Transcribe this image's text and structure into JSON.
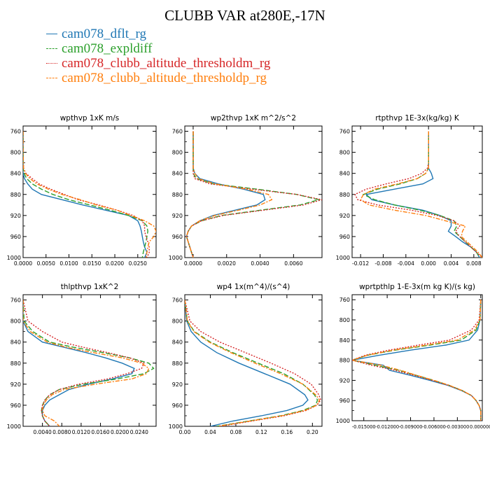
{
  "figure": {
    "title": "CLUBB VAR at280E,-17N",
    "legend": [
      {
        "label": "cam078_dflt_rg",
        "color": "#1f77b4",
        "dash": ""
      },
      {
        "label": "cam078_expldiff",
        "color": "#2ca02c",
        "dash": "7,3"
      },
      {
        "label": "cam078_clubb_altitude_thresholdm_rg",
        "color": "#d62728",
        "dash": "2,2"
      },
      {
        "label": "cam078_clubb_altitude_thresholdp_rg",
        "color": "#ff7f0e",
        "dash": "6,2,2,2"
      }
    ]
  },
  "chart_data": [
    {
      "type": "line",
      "title": "wpthvp  1xK m/s",
      "xlim": [
        0,
        0.029
      ],
      "ylim": [
        1000,
        750
      ],
      "xticks": [
        0,
        0.005,
        0.01,
        0.015,
        0.02,
        0.025
      ],
      "xticklabels": [
        "0.0000",
        "0.0050",
        "0.0100",
        "0.0150",
        "0.0200",
        "0.0250"
      ],
      "yticks": [
        760,
        800,
        840,
        880,
        920,
        960,
        1000
      ],
      "y": [
        760,
        800,
        830,
        840,
        850,
        860,
        870,
        880,
        890,
        900,
        910,
        920,
        930,
        940,
        950,
        960,
        970,
        980,
        990,
        1000
      ],
      "series": [
        {
          "name": "cam078_dflt_rg",
          "values": [
            0,
            0,
            0,
            0,
            0.0003,
            0.001,
            0.002,
            0.004,
            0.0085,
            0.013,
            0.018,
            0.023,
            0.025,
            0.0255,
            0.0258,
            0.026,
            0.0262,
            0.0265,
            0.027,
            0.0265
          ]
        },
        {
          "name": "cam078_expldiff",
          "values": [
            0,
            0,
            0,
            0.0002,
            0.0008,
            0.002,
            0.004,
            0.0065,
            0.01,
            0.0145,
            0.019,
            0.023,
            0.026,
            0.027,
            0.0272,
            0.027,
            0.0268,
            0.0265,
            0.0262,
            0.026
          ]
        },
        {
          "name": "cam078_clubb_altitude_thresholdm_rg",
          "values": [
            0,
            0,
            0.0001,
            0.0006,
            0.002,
            0.0035,
            0.006,
            0.009,
            0.012,
            0.0165,
            0.0205,
            0.024,
            0.026,
            0.0265,
            0.0265,
            0.0268,
            0.0272,
            0.0275,
            0.0275,
            0.027
          ]
        },
        {
          "name": "cam078_clubb_altitude_thresholdp_rg",
          "values": [
            0,
            0,
            0.0001,
            0.0005,
            0.0015,
            0.003,
            0.0055,
            0.0085,
            0.0125,
            0.016,
            0.0205,
            0.0235,
            0.0265,
            0.0285,
            0.029,
            0.0285,
            0.0275,
            0.0272,
            0.027,
            0.0268
          ]
        }
      ]
    },
    {
      "type": "line",
      "title": "wp2thvp  1xK m^2/s^2",
      "xlim": [
        -0.0005,
        0.0077
      ],
      "ylim": [
        1000,
        750
      ],
      "xticks": [
        0,
        0.002,
        0.004,
        0.006
      ],
      "xticklabels": [
        "0.0000",
        "0.0020",
        "0.0040",
        "0.0060"
      ],
      "yticks": [
        760,
        800,
        840,
        880,
        920,
        960,
        1000
      ],
      "y": [
        760,
        800,
        830,
        840,
        850,
        860,
        870,
        880,
        890,
        900,
        910,
        920,
        930,
        940,
        950,
        960,
        970,
        980,
        990,
        1000
      ],
      "series": [
        {
          "name": "cam078_dflt_rg",
          "values": [
            0,
            0,
            0,
            0.0001,
            0.0004,
            0.0015,
            0.003,
            0.0042,
            0.0043,
            0.0038,
            0.0025,
            0.0012,
            0.0004,
            -0.0001,
            -0.0003,
            -0.0004,
            -0.0003,
            -0.0002,
            -0.0001,
            0
          ]
        },
        {
          "name": "cam078_expldiff",
          "values": [
            0,
            0,
            0,
            0,
            0.0002,
            0.0012,
            0.0038,
            0.0062,
            0.0075,
            0.0064,
            0.004,
            0.0017,
            0.0005,
            -0.0001,
            -0.0003,
            -0.0004,
            -0.0003,
            -0.0002,
            -0.0001,
            0
          ]
        },
        {
          "name": "cam078_clubb_altitude_thresholdm_rg",
          "values": [
            0,
            0,
            0,
            0,
            0.0001,
            0.001,
            0.0035,
            0.0062,
            0.0077,
            0.0066,
            0.0042,
            0.0018,
            0.0005,
            -0.0001,
            -0.0003,
            -0.0004,
            -0.0003,
            -0.0002,
            -0.0001,
            0
          ]
        },
        {
          "name": "cam078_clubb_altitude_thresholdp_rg",
          "values": [
            0,
            0,
            0,
            0.0001,
            0.0003,
            0.0013,
            0.0032,
            0.0045,
            0.0047,
            0.004,
            0.0027,
            0.0013,
            0.0004,
            -0.0001,
            -0.0003,
            -0.0004,
            -0.0003,
            -0.0002,
            -0.0001,
            0
          ]
        }
      ]
    },
    {
      "type": "line",
      "title": "rtpthvp  1E-3x(kg/kg) K",
      "xlim": [
        -0.0135,
        0.0095
      ],
      "ylim": [
        1000,
        750
      ],
      "xticks": [
        -0.012,
        -0.008,
        -0.004,
        0,
        0.004,
        0.008
      ],
      "xticklabels": [
        "-0.012",
        "-0.008",
        "-0.004",
        "0.000",
        "0.004",
        "0.008"
      ],
      "yticks": [
        760,
        800,
        840,
        880,
        920,
        960,
        1000
      ],
      "y": [
        760,
        800,
        820,
        830,
        840,
        850,
        860,
        870,
        880,
        890,
        900,
        910,
        920,
        930,
        940,
        950,
        960,
        970,
        980,
        990,
        1000
      ],
      "series": [
        {
          "name": "cam078_dflt_rg",
          "values": [
            0,
            0,
            0,
            0,
            0.0005,
            0.0008,
            -0.001,
            -0.006,
            -0.011,
            -0.01,
            -0.006,
            -0.001,
            0.002,
            0.004,
            0.004,
            0.0035,
            0.0048,
            0.006,
            0.0075,
            0.0085,
            0.009
          ]
        },
        {
          "name": "cam078_expldiff",
          "values": [
            0,
            0,
            0,
            0,
            -0.0005,
            -0.002,
            -0.005,
            -0.009,
            -0.0115,
            -0.0095,
            -0.006,
            -0.0015,
            0.002,
            0.0045,
            0.005,
            0.0045,
            0.0055,
            0.0065,
            0.0075,
            0.0085,
            0.009
          ]
        },
        {
          "name": "cam078_clubb_altitude_thresholdm_rg",
          "values": [
            0,
            0,
            0,
            -0.0002,
            -0.0012,
            -0.0035,
            -0.0075,
            -0.011,
            -0.013,
            -0.0125,
            -0.009,
            -0.003,
            0.0015,
            0.0045,
            0.0055,
            0.0048,
            0.0055,
            0.0065,
            0.0075,
            0.0085,
            0.0095
          ]
        },
        {
          "name": "cam078_clubb_altitude_thresholdp_rg",
          "values": [
            0,
            0,
            0,
            0,
            -0.0005,
            -0.002,
            -0.0055,
            -0.0095,
            -0.0115,
            -0.012,
            -0.0105,
            -0.006,
            -0.0005,
            0.003,
            0.0065,
            0.006,
            0.0058,
            0.0068,
            0.0078,
            0.0088,
            0.0095
          ]
        }
      ]
    },
    {
      "type": "line",
      "title": "thlpthvp  1xK^2",
      "xlim": [
        0,
        0.0275
      ],
      "ylim": [
        1000,
        750
      ],
      "xticks": [
        0.004,
        0.008,
        0.012,
        0.016,
        0.02,
        0.024
      ],
      "xticklabels": [
        "0.0040",
        "0.0080",
        "0.0120",
        "0.0160",
        "0.0200",
        "0.0240"
      ],
      "yticks": [
        760,
        800,
        840,
        880,
        920,
        960,
        1000
      ],
      "y": [
        760,
        800,
        820,
        840,
        850,
        860,
        870,
        880,
        890,
        900,
        910,
        920,
        930,
        940,
        950,
        960,
        970,
        980,
        990,
        1000
      ],
      "series": [
        {
          "name": "cam078_dflt_rg",
          "values": [
            0,
            0,
            0.001,
            0.004,
            0.0085,
            0.013,
            0.017,
            0.0205,
            0.023,
            0.0225,
            0.0185,
            0.0135,
            0.0095,
            0.0075,
            0.0055,
            0.0045,
            0.004,
            0.004,
            0.0045,
            0.0055
          ]
        },
        {
          "name": "cam078_expldiff",
          "values": [
            0,
            0.0002,
            0.002,
            0.0055,
            0.0105,
            0.0165,
            0.022,
            0.026,
            0.027,
            0.025,
            0.0195,
            0.0125,
            0.0075,
            0.0055,
            0.0045,
            0.004,
            0.0038,
            0.004,
            0.0045,
            0.0055
          ]
        },
        {
          "name": "cam078_clubb_altitude_thresholdm_rg",
          "values": [
            0,
            0.001,
            0.004,
            0.008,
            0.0125,
            0.0175,
            0.022,
            0.025,
            0.0245,
            0.0215,
            0.0175,
            0.0115,
            0.0075,
            0.0055,
            0.0045,
            0.004,
            0.0038,
            0.004,
            0.0045,
            0.0055
          ]
        },
        {
          "name": "cam078_clubb_altitude_thresholdp_rg",
          "values": [
            0,
            0,
            0.0015,
            0.005,
            0.009,
            0.0145,
            0.0205,
            0.0245,
            0.026,
            0.0255,
            0.0225,
            0.015,
            0.0085,
            0.006,
            0.0048,
            0.0042,
            0.004,
            0.0045,
            0.0065,
            0.0075
          ]
        }
      ]
    },
    {
      "type": "line",
      "title": "wp4  1x(m^4)/(s^4)",
      "xlim": [
        0,
        0.215
      ],
      "ylim": [
        1000,
        750
      ],
      "xticks": [
        0,
        0.04,
        0.08,
        0.12,
        0.16,
        0.2
      ],
      "xticklabels": [
        "0.00",
        "0.04",
        "0.08",
        "0.12",
        "0.16",
        "0.20"
      ],
      "yticks": [
        760,
        800,
        840,
        880,
        920,
        960,
        1000
      ],
      "y": [
        760,
        800,
        820,
        840,
        860,
        880,
        900,
        920,
        940,
        950,
        960,
        970,
        980,
        990,
        1000
      ],
      "series": [
        {
          "name": "cam078_dflt_rg",
          "values": [
            0,
            0.003,
            0.01,
            0.025,
            0.05,
            0.085,
            0.125,
            0.165,
            0.188,
            0.193,
            0.185,
            0.16,
            0.12,
            0.075,
            0.04
          ]
        },
        {
          "name": "cam078_expldiff",
          "values": [
            0,
            0.004,
            0.015,
            0.04,
            0.075,
            0.115,
            0.155,
            0.185,
            0.203,
            0.208,
            0.205,
            0.185,
            0.15,
            0.1,
            0.05
          ]
        },
        {
          "name": "cam078_clubb_altitude_thresholdm_rg",
          "values": [
            0,
            0.008,
            0.025,
            0.055,
            0.095,
            0.135,
            0.172,
            0.198,
            0.21,
            0.213,
            0.207,
            0.19,
            0.155,
            0.105,
            0.055
          ]
        },
        {
          "name": "cam078_clubb_altitude_thresholdp_rg",
          "values": [
            0,
            0.004,
            0.014,
            0.038,
            0.072,
            0.11,
            0.15,
            0.185,
            0.205,
            0.211,
            0.207,
            0.188,
            0.152,
            0.102,
            0.052
          ]
        }
      ]
    },
    {
      "type": "line",
      "title": "wprtpthlp  1-E-3x(m kg K)/(s kg)",
      "xlim": [
        -0.0165,
        0.0002
      ],
      "ylim": [
        1000,
        750
      ],
      "xticks": [
        -0.015,
        -0.012,
        -0.009,
        -0.006,
        -0.003,
        0
      ],
      "xticklabels": [
        "-0.015000",
        "-0.012000",
        "-0.009000",
        "-0.006000",
        "-0.003000",
        "0.000000"
      ],
      "yticks": [
        760,
        800,
        840,
        880,
        920,
        960,
        1000
      ],
      "y": [
        760,
        800,
        820,
        840,
        850,
        860,
        870,
        880,
        890,
        900,
        910,
        920,
        930,
        940,
        950,
        960,
        970,
        980,
        990,
        1000
      ],
      "series": [
        {
          "name": "cam078_dflt_rg",
          "values": [
            0,
            -0.0001,
            -0.0004,
            -0.0015,
            -0.0045,
            -0.009,
            -0.013,
            -0.0165,
            -0.0125,
            -0.0117,
            -0.009,
            -0.0065,
            -0.0042,
            -0.0025,
            -0.0012,
            -0.0006,
            -0.0002,
            0,
            0,
            0
          ]
        },
        {
          "name": "cam078_expldiff",
          "values": [
            0,
            -0.0001,
            -0.0006,
            -0.0025,
            -0.0065,
            -0.011,
            -0.0145,
            -0.0165,
            -0.0135,
            -0.0105,
            -0.0083,
            -0.006,
            -0.004,
            -0.0024,
            -0.0012,
            -0.0006,
            -0.0002,
            0,
            0,
            0
          ]
        },
        {
          "name": "cam078_clubb_altitude_thresholdm_rg",
          "values": [
            0,
            -0.0002,
            -0.0012,
            -0.004,
            -0.008,
            -0.0118,
            -0.0148,
            -0.0165,
            -0.014,
            -0.011,
            -0.0085,
            -0.0062,
            -0.0041,
            -0.0024,
            -0.0012,
            -0.0006,
            -0.0002,
            0,
            0,
            0
          ]
        },
        {
          "name": "cam078_clubb_altitude_thresholdp_rg",
          "values": [
            0,
            -0.0001,
            -0.0008,
            -0.003,
            -0.007,
            -0.0112,
            -0.0145,
            -0.0165,
            -0.0128,
            -0.0103,
            -0.0082,
            -0.006,
            -0.004,
            -0.0024,
            -0.0012,
            -0.0006,
            -0.0002,
            0,
            0,
            0
          ]
        }
      ]
    }
  ]
}
